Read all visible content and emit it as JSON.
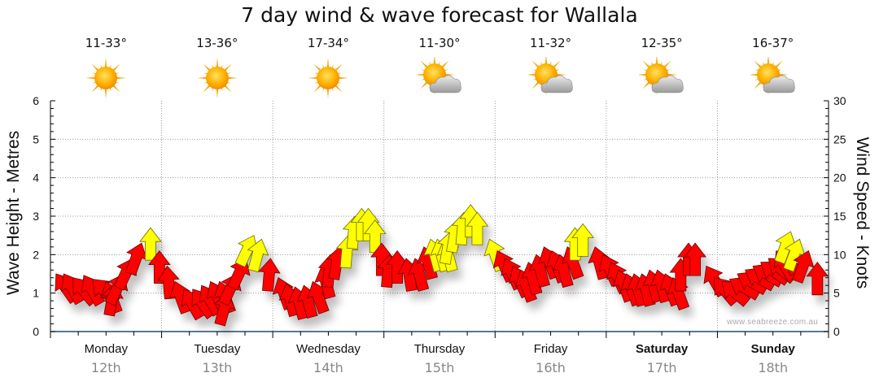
{
  "chart_data": {
    "type": "wind-arrows",
    "title": "7 day wind & wave forecast for Wallala",
    "ylabel_left": "Wave Height - Metres",
    "ylabel_right": "Wind Speed - Knots",
    "ylim_left": [
      0,
      6
    ],
    "ylim_right": [
      0,
      30
    ],
    "yticks_left": [
      "0",
      "1",
      "2",
      "3",
      "4",
      "5",
      "6"
    ],
    "yticks_right": [
      "0",
      "5",
      "10",
      "15",
      "20",
      "25",
      "30"
    ],
    "grid": true,
    "days": [
      {
        "name": "Monday",
        "date": "12th",
        "temp": "11-33°",
        "icon": "sun-icon",
        "bold": false
      },
      {
        "name": "Tuesday",
        "date": "13th",
        "temp": "13-36°",
        "icon": "sun-icon",
        "bold": false
      },
      {
        "name": "Wednesday",
        "date": "14th",
        "temp": "17-34°",
        "icon": "sun-icon",
        "bold": false
      },
      {
        "name": "Thursday",
        "date": "15th",
        "temp": "11-30°",
        "icon": "partly-cloudy-icon",
        "bold": false
      },
      {
        "name": "Friday",
        "date": "16th",
        "temp": "11-32°",
        "icon": "partly-cloudy-icon",
        "bold": false
      },
      {
        "name": "Saturday",
        "date": "17th",
        "temp": "12-35°",
        "icon": "partly-cloudy-icon",
        "bold": true
      },
      {
        "name": "Sunday",
        "date": "18th",
        "temp": "16-37°",
        "icon": "partly-cloudy-icon",
        "bold": true
      }
    ],
    "wind_unit": "knots",
    "wind_high_threshold": 12,
    "wind": [
      {
        "t": 0.05,
        "speed": 7.5,
        "dir": -35
      },
      {
        "t": 0.12,
        "speed": 7.5,
        "dir": -30
      },
      {
        "t": 0.2,
        "speed": 7.0,
        "dir": -40
      },
      {
        "t": 0.3,
        "speed": 7.3,
        "dir": -30
      },
      {
        "t": 0.38,
        "speed": 6.8,
        "dir": -45
      },
      {
        "t": 0.5,
        "speed": 6.5,
        "dir": -20
      },
      {
        "t": 0.58,
        "speed": 6.3,
        "dir": 10
      },
      {
        "t": 0.66,
        "speed": 7.5,
        "dir": 25
      },
      {
        "t": 0.74,
        "speed": 9.5,
        "dir": 25
      },
      {
        "t": 0.82,
        "speed": 11.5,
        "dir": 20
      },
      {
        "t": 0.9,
        "speed": 13.5,
        "dir": 0
      },
      {
        "t": 0.98,
        "speed": 10.5,
        "dir": 0
      },
      {
        "t": 1.05,
        "speed": 8.5,
        "dir": -5
      },
      {
        "t": 1.12,
        "speed": 6.5,
        "dir": -20
      },
      {
        "t": 1.2,
        "speed": 5.5,
        "dir": -30
      },
      {
        "t": 1.28,
        "speed": 5.5,
        "dir": -35
      },
      {
        "t": 1.36,
        "speed": 6.0,
        "dir": -30
      },
      {
        "t": 1.44,
        "speed": 6.5,
        "dir": -25
      },
      {
        "t": 1.52,
        "speed": 6.5,
        "dir": -20
      },
      {
        "t": 1.6,
        "speed": 5.0,
        "dir": 15
      },
      {
        "t": 1.68,
        "speed": 7.5,
        "dir": 25
      },
      {
        "t": 1.76,
        "speed": 9.5,
        "dir": 25
      },
      {
        "t": 1.83,
        "speed": 12.5,
        "dir": 25
      },
      {
        "t": 1.9,
        "speed": 12.0,
        "dir": 15
      },
      {
        "t": 1.98,
        "speed": 9.5,
        "dir": 5
      },
      {
        "t": 2.05,
        "speed": 7.0,
        "dir": -20
      },
      {
        "t": 2.12,
        "speed": 6.2,
        "dir": -15
      },
      {
        "t": 2.2,
        "speed": 5.8,
        "dir": -15
      },
      {
        "t": 2.28,
        "speed": 6.0,
        "dir": -15
      },
      {
        "t": 2.36,
        "speed": 6.5,
        "dir": -20
      },
      {
        "t": 2.44,
        "speed": 8.5,
        "dir": -15
      },
      {
        "t": 2.52,
        "speed": 10.0,
        "dir": 5
      },
      {
        "t": 2.6,
        "speed": 11.0,
        "dir": 10
      },
      {
        "t": 2.68,
        "speed": 12.5,
        "dir": 5
      },
      {
        "t": 2.74,
        "speed": 15.0,
        "dir": 5
      },
      {
        "t": 2.8,
        "speed": 16.0,
        "dir": 0
      },
      {
        "t": 2.86,
        "speed": 16.0,
        "dir": 0
      },
      {
        "t": 2.92,
        "speed": 14.5,
        "dir": 0
      },
      {
        "t": 2.98,
        "speed": 11.5,
        "dir": 0
      },
      {
        "t": 3.05,
        "speed": 10.0,
        "dir": 5
      },
      {
        "t": 3.12,
        "speed": 10.5,
        "dir": 0
      },
      {
        "t": 3.2,
        "speed": 9.5,
        "dir": -10
      },
      {
        "t": 3.28,
        "speed": 9.5,
        "dir": -15
      },
      {
        "t": 3.36,
        "speed": 11.0,
        "dir": -15
      },
      {
        "t": 3.42,
        "speed": 12.0,
        "dir": -15
      },
      {
        "t": 3.48,
        "speed": 12.0,
        "dir": -15
      },
      {
        "t": 3.54,
        "speed": 12.0,
        "dir": -15
      },
      {
        "t": 3.6,
        "speed": 13.0,
        "dir": 10
      },
      {
        "t": 3.66,
        "speed": 14.5,
        "dir": 10
      },
      {
        "t": 3.72,
        "speed": 15.5,
        "dir": 5
      },
      {
        "t": 3.78,
        "speed": 16.5,
        "dir": 0
      },
      {
        "t": 3.84,
        "speed": 15.5,
        "dir": 0
      },
      {
        "t": 3.95,
        "speed": 12.0,
        "dir": -20
      },
      {
        "t": 4.02,
        "speed": 10.5,
        "dir": -25
      },
      {
        "t": 4.09,
        "speed": 9.5,
        "dir": -25
      },
      {
        "t": 4.16,
        "speed": 8.5,
        "dir": -25
      },
      {
        "t": 4.23,
        "speed": 8.0,
        "dir": -20
      },
      {
        "t": 4.3,
        "speed": 9.0,
        "dir": -15
      },
      {
        "t": 4.37,
        "speed": 10.0,
        "dir": -15
      },
      {
        "t": 4.44,
        "speed": 11.0,
        "dir": -20
      },
      {
        "t": 4.51,
        "speed": 10.5,
        "dir": -20
      },
      {
        "t": 4.58,
        "speed": 10.0,
        "dir": -15
      },
      {
        "t": 4.65,
        "speed": 11.0,
        "dir": -20
      },
      {
        "t": 4.72,
        "speed": 13.5,
        "dir": 0
      },
      {
        "t": 4.79,
        "speed": 14.0,
        "dir": 0
      },
      {
        "t": 4.9,
        "speed": 11.0,
        "dir": -15
      },
      {
        "t": 4.97,
        "speed": 10.0,
        "dir": -25
      },
      {
        "t": 5.04,
        "speed": 9.0,
        "dir": -25
      },
      {
        "t": 5.11,
        "speed": 8.0,
        "dir": -20
      },
      {
        "t": 5.18,
        "speed": 7.5,
        "dir": -20
      },
      {
        "t": 5.25,
        "speed": 7.5,
        "dir": -15
      },
      {
        "t": 5.32,
        "speed": 7.5,
        "dir": -15
      },
      {
        "t": 5.39,
        "speed": 8.0,
        "dir": -15
      },
      {
        "t": 5.46,
        "speed": 8.0,
        "dir": -15
      },
      {
        "t": 5.53,
        "speed": 7.5,
        "dir": -20
      },
      {
        "t": 5.6,
        "speed": 7.0,
        "dir": -20
      },
      {
        "t": 5.67,
        "speed": 9.5,
        "dir": 0
      },
      {
        "t": 5.74,
        "speed": 11.5,
        "dir": 0
      },
      {
        "t": 5.8,
        "speed": 11.5,
        "dir": 0
      },
      {
        "t": 5.9,
        "speed": 8.5,
        "dir": -30
      },
      {
        "t": 5.97,
        "speed": 7.0,
        "dir": -40
      },
      {
        "t": 6.04,
        "speed": 6.5,
        "dir": -50
      },
      {
        "t": 6.11,
        "speed": 6.8,
        "dir": -60
      },
      {
        "t": 6.18,
        "speed": 7.5,
        "dir": -60
      },
      {
        "t": 6.25,
        "speed": 8.0,
        "dir": -60
      },
      {
        "t": 6.32,
        "speed": 8.5,
        "dir": -60
      },
      {
        "t": 6.39,
        "speed": 9.0,
        "dir": -55
      },
      {
        "t": 6.46,
        "speed": 9.5,
        "dir": -50
      },
      {
        "t": 6.53,
        "speed": 10.5,
        "dir": -30
      },
      {
        "t": 6.6,
        "speed": 11.5,
        "dir": -20
      },
      {
        "t": 6.66,
        "speed": 13.0,
        "dir": 20
      },
      {
        "t": 6.74,
        "speed": 12.0,
        "dir": 20
      },
      {
        "t": 6.82,
        "speed": 10.5,
        "dir": 20
      },
      {
        "t": 6.9,
        "speed": 9.0,
        "dir": 0
      }
    ]
  },
  "watermark": "www.seabreeze.com.au"
}
